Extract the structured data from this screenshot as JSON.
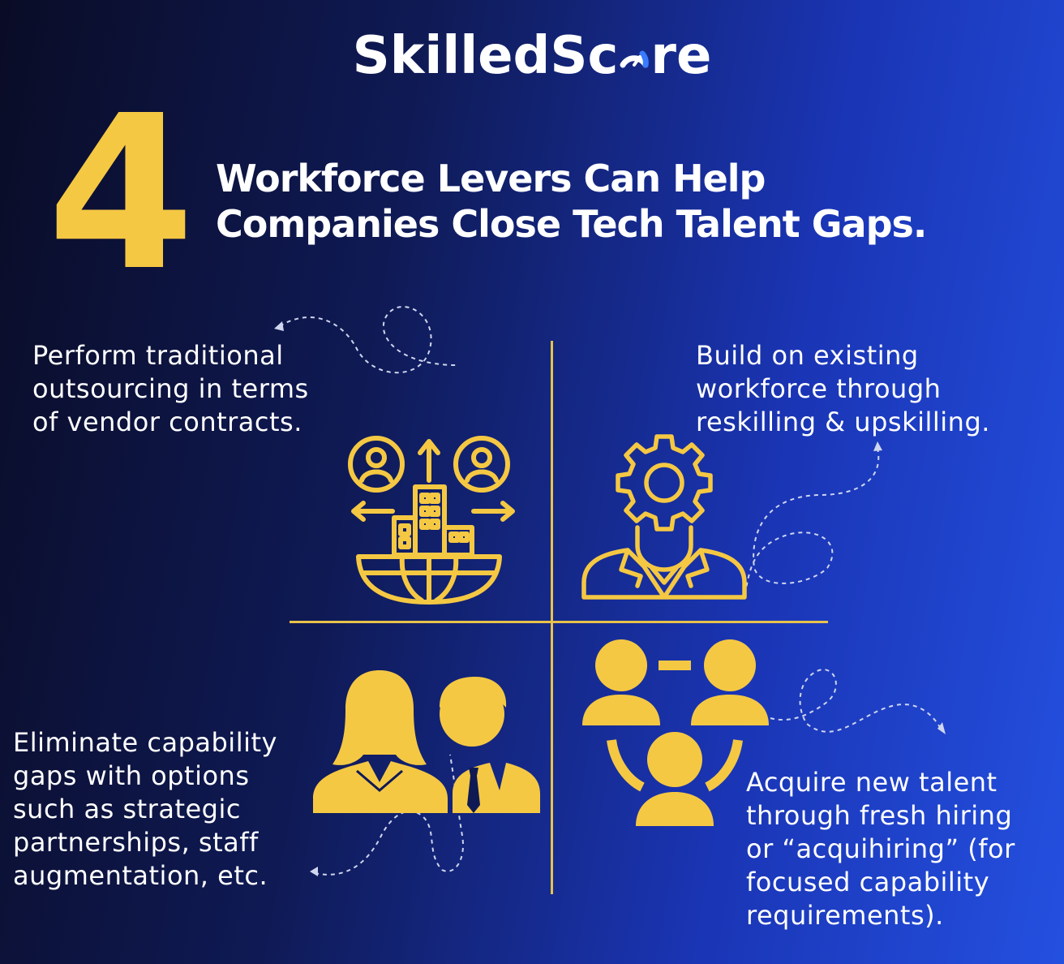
{
  "brand": {
    "name_part1": "SkilledSc",
    "name_part2": "re"
  },
  "headline": {
    "number": "4",
    "line1": "Workforce Levers Can Help",
    "line2": "Companies Close Tech Talent Gaps."
  },
  "quadrants": [
    {
      "lines": [
        "Perform traditional",
        "outsourcing in terms",
        "of vendor contracts."
      ],
      "icon": "outsourcing-icon"
    },
    {
      "lines": [
        "Build on existing",
        "workforce through",
        "reskilling & upskilling."
      ],
      "icon": "reskilling-icon"
    },
    {
      "lines": [
        "Eliminate capability",
        "gaps with options",
        "such as strategic",
        "partnerships, staff",
        "augmentation, etc."
      ],
      "icon": "partnership-icon"
    },
    {
      "lines": [
        "Acquire new talent",
        "through fresh hiring",
        "or “acquihiring” (for",
        "focused capability",
        "requirements)."
      ],
      "icon": "acquire-talent-icon"
    }
  ],
  "colors": {
    "accent": "#f5c843",
    "text": "#ffffff",
    "background_start": "#0a0c26",
    "background_end": "#2450e0"
  }
}
